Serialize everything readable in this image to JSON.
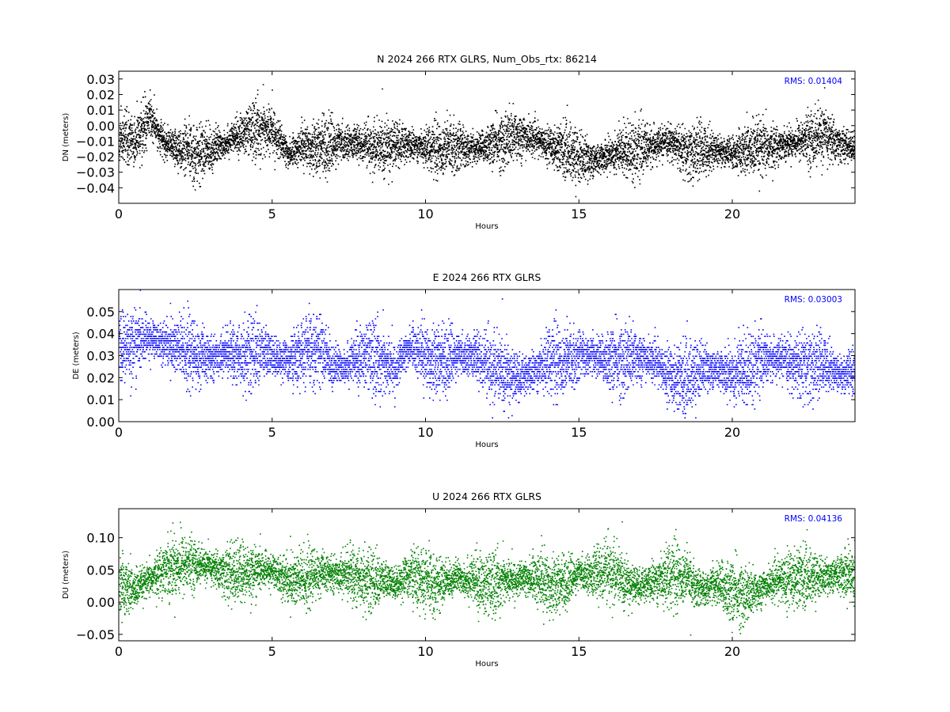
{
  "chart_data": [
    {
      "type": "scatter",
      "title": "N 2024 266 RTX  GLRS, Num_Obs_rtx: 86214",
      "xlabel": "Hours",
      "ylabel": "DN (meters)",
      "xlim": [
        0,
        24
      ],
      "ylim": [
        -0.05,
        0.035
      ],
      "xticks": [
        "0",
        "5",
        "10",
        "15",
        "20"
      ],
      "yticks": [
        "0.03",
        "0.02",
        "0.01",
        "0.00",
        "−0.01",
        "−0.02",
        "−0.03",
        "−0.04"
      ],
      "annotation": "RMS:  0.01404",
      "series": [
        {
          "color": "#000000",
          "x": [
            0,
            0.5,
            1,
            1.5,
            2,
            2.5,
            3,
            3.5,
            4,
            4.5,
            5,
            5.5,
            6,
            6.5,
            7,
            7.5,
            8,
            8.5,
            9,
            9.5,
            10,
            10.5,
            11,
            11.5,
            12,
            12.5,
            13,
            13.5,
            14,
            14.5,
            15,
            15.5,
            16,
            16.5,
            17,
            17.5,
            18,
            18.5,
            19,
            19.5,
            20,
            20.5,
            21,
            21.5,
            22,
            22.5,
            23,
            23.5,
            24
          ],
          "y": [
            -0.008,
            -0.01,
            0.005,
            -0.012,
            -0.015,
            -0.018,
            -0.015,
            -0.01,
            -0.005,
            -0.002,
            -0.003,
            -0.018,
            -0.012,
            -0.013,
            -0.012,
            -0.01,
            -0.012,
            -0.015,
            -0.012,
            -0.012,
            -0.013,
            -0.015,
            -0.012,
            -0.015,
            -0.012,
            -0.01,
            -0.006,
            -0.008,
            -0.012,
            -0.015,
            -0.02,
            -0.022,
            -0.018,
            -0.015,
            -0.015,
            -0.012,
            -0.01,
            -0.018,
            -0.015,
            -0.015,
            -0.018,
            -0.015,
            -0.015,
            -0.012,
            -0.01,
            -0.008,
            -0.006,
            -0.012,
            -0.014
          ],
          "spread": 0.009
        }
      ]
    },
    {
      "type": "scatter",
      "title": "E 2024 266 RTX  GLRS",
      "xlabel": "Hours",
      "ylabel": "DE (meters)",
      "xlim": [
        0,
        24
      ],
      "ylim": [
        0.0,
        0.06
      ],
      "xticks": [
        "0",
        "5",
        "10",
        "15",
        "20"
      ],
      "yticks": [
        "0.05",
        "0.04",
        "0.03",
        "0.02",
        "0.01",
        "0.00"
      ],
      "annotation": "RMS:  0.03003",
      "series": [
        {
          "color": "#0000ff",
          "x": [
            0,
            0.5,
            1,
            1.5,
            2,
            2.5,
            3,
            3.5,
            4,
            4.5,
            5,
            5.5,
            6,
            6.5,
            7,
            7.5,
            8,
            8.5,
            9,
            9.5,
            10,
            10.5,
            11,
            11.5,
            12,
            12.5,
            13,
            13.5,
            14,
            14.5,
            15,
            15.5,
            16,
            16.5,
            17,
            17.5,
            18,
            18.5,
            19,
            19.5,
            20,
            20.5,
            21,
            21.5,
            22,
            22.5,
            23,
            23.5,
            24
          ],
          "y": [
            0.033,
            0.036,
            0.038,
            0.036,
            0.033,
            0.03,
            0.029,
            0.032,
            0.03,
            0.032,
            0.03,
            0.028,
            0.031,
            0.034,
            0.025,
            0.027,
            0.03,
            0.028,
            0.024,
            0.035,
            0.03,
            0.028,
            0.03,
            0.031,
            0.026,
            0.022,
            0.02,
            0.023,
            0.029,
            0.027,
            0.031,
            0.03,
            0.028,
            0.028,
            0.03,
            0.027,
            0.021,
            0.02,
            0.025,
            0.024,
            0.022,
            0.025,
            0.028,
            0.029,
            0.026,
            0.025,
            0.027,
            0.022,
            0.022
          ],
          "spread": 0.008
        }
      ]
    },
    {
      "type": "scatter",
      "title": "U 2024 266 RTX  GLRS",
      "xlabel": "Hours",
      "ylabel": "DU (meters)",
      "xlim": [
        0,
        24
      ],
      "ylim": [
        -0.06,
        0.145
      ],
      "xticks": [
        "0",
        "5",
        "10",
        "15",
        "20"
      ],
      "yticks": [
        "0.10",
        "0.05",
        "0.00",
        "−0.05"
      ],
      "annotation": "RMS:  0.04136",
      "series": [
        {
          "color": "#008000",
          "x": [
            0,
            0.5,
            1,
            1.5,
            2,
            2.5,
            3,
            3.5,
            4,
            4.5,
            5,
            5.5,
            6,
            6.5,
            7,
            7.5,
            8,
            8.5,
            9,
            9.5,
            10,
            10.5,
            11,
            11.5,
            12,
            12.5,
            13,
            13.5,
            14,
            14.5,
            15,
            15.5,
            16,
            16.5,
            17,
            17.5,
            18,
            18.5,
            19,
            19.5,
            20,
            20.5,
            21,
            21.5,
            22,
            22.5,
            23,
            23.5,
            24
          ],
          "y": [
            0.025,
            0.02,
            0.035,
            0.055,
            0.06,
            0.06,
            0.055,
            0.045,
            0.045,
            0.05,
            0.05,
            0.035,
            0.035,
            0.045,
            0.045,
            0.045,
            0.035,
            0.035,
            0.03,
            0.045,
            0.03,
            0.03,
            0.04,
            0.035,
            0.025,
            0.035,
            0.035,
            0.04,
            0.03,
            0.03,
            0.045,
            0.045,
            0.05,
            0.03,
            0.025,
            0.035,
            0.045,
            0.04,
            0.02,
            0.03,
            0.015,
            0.01,
            0.025,
            0.035,
            0.04,
            0.04,
            0.04,
            0.045,
            0.045
          ],
          "spread": 0.024
        }
      ]
    }
  ]
}
